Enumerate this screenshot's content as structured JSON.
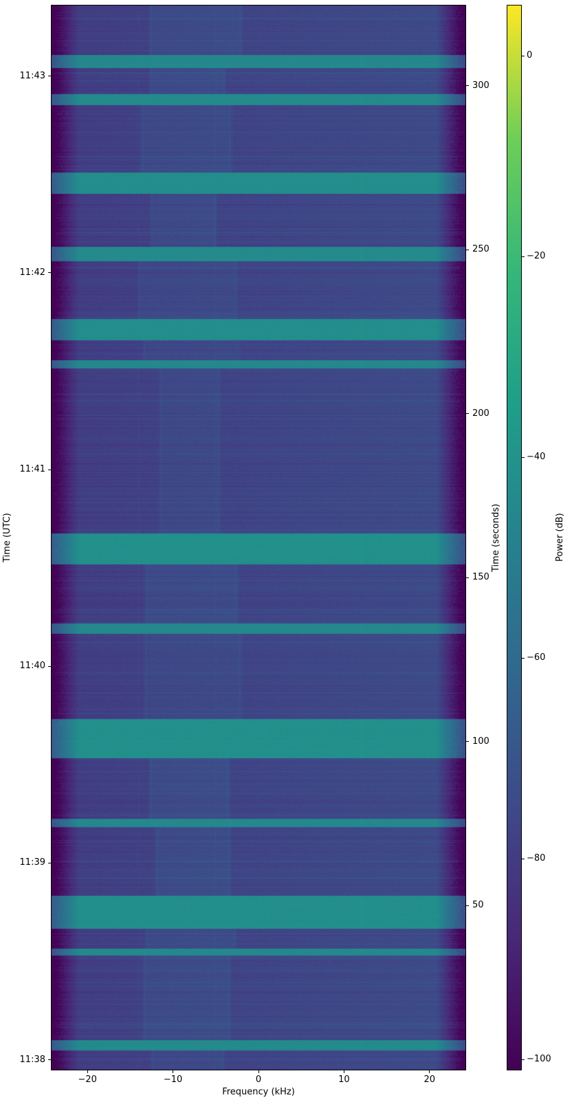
{
  "chart_data": {
    "type": "heatmap",
    "title": "",
    "xlabel": "Frequency (kHz)",
    "ylabel_left": "Time (UTC)",
    "ylabel_right": "Time (seconds)",
    "colorbar_label": "Power (dB)",
    "colormap": "viridis",
    "x_range_khz": [
      -24.2,
      24.2
    ],
    "x_ticks_khz": [
      -20,
      -10,
      0,
      10,
      20
    ],
    "time_range_s": [
      0,
      324.5
    ],
    "right_ticks_s": [
      50,
      100,
      150,
      200,
      250,
      300
    ],
    "utc_ticks": [
      {
        "label": "11:38",
        "s": 3
      },
      {
        "label": "11:39",
        "s": 63
      },
      {
        "label": "11:40",
        "s": 123
      },
      {
        "label": "11:41",
        "s": 183
      },
      {
        "label": "11:42",
        "s": 243
      },
      {
        "label": "11:43",
        "s": 303
      }
    ],
    "power_range_db": [
      -101,
      5
    ],
    "colorbar_ticks_db": [
      0,
      -20,
      -40,
      -60,
      -80,
      -100
    ],
    "background_power_db": -79.5,
    "background_right_tilt_db_per_khz": 0.12,
    "edge_fade_start_khz": 21,
    "edge_fade_db_per_khz": 8,
    "center_column_khz": [
      -12.5,
      -2.8
    ],
    "center_column_boost_db": 3.2,
    "burst_line_khz": 12.1,
    "bursts": [
      {
        "start_s": 305.5,
        "end_s": 309.5,
        "power_db": -45
      },
      {
        "start_s": 294.0,
        "end_s": 297.5,
        "power_db": -44
      },
      {
        "start_s": 267.0,
        "end_s": 273.5,
        "power_db": -42.5
      },
      {
        "start_s": 246.5,
        "end_s": 251.0,
        "power_db": -44
      },
      {
        "start_s": 222.5,
        "end_s": 229.0,
        "power_db": -42.5
      },
      {
        "start_s": 213.8,
        "end_s": 216.3,
        "power_db": -45
      },
      {
        "start_s": 154.0,
        "end_s": 163.5,
        "power_db": -41.5
      },
      {
        "start_s": 133.0,
        "end_s": 136.0,
        "power_db": -45
      },
      {
        "start_s": 95.0,
        "end_s": 107.0,
        "power_db": -41.5
      },
      {
        "start_s": 74.0,
        "end_s": 76.5,
        "power_db": -45
      },
      {
        "start_s": 43.0,
        "end_s": 53.0,
        "power_db": -42
      },
      {
        "start_s": 34.8,
        "end_s": 36.8,
        "power_db": -45
      },
      {
        "start_s": 5.8,
        "end_s": 9.0,
        "power_db": -44
      }
    ],
    "viridis_stops": [
      "#440154",
      "#482878",
      "#3e4a89",
      "#31688e",
      "#26828e",
      "#1f9e89",
      "#35b779",
      "#6ece58",
      "#fde725"
    ]
  }
}
